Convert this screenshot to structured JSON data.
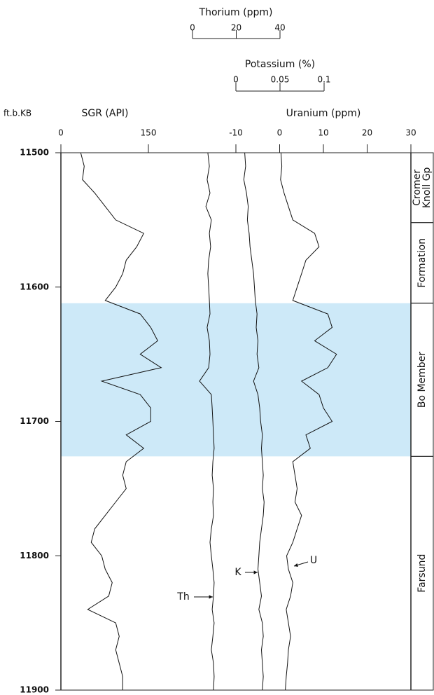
{
  "chart_data": {
    "type": "well-log",
    "depth_label": "ft.b.KB",
    "depth": [
      11500,
      11510,
      11520,
      11530,
      11540,
      11550,
      11560,
      11570,
      11580,
      11590,
      11600,
      11610,
      11620,
      11630,
      11640,
      11650,
      11660,
      11670,
      11680,
      11690,
      11700,
      11710,
      11720,
      11730,
      11740,
      11750,
      11760,
      11770,
      11780,
      11790,
      11800,
      11810,
      11820,
      11830,
      11840,
      11850,
      11860,
      11870,
      11880,
      11890,
      11900
    ],
    "ylim": [
      11500,
      11900
    ],
    "yticks": [
      11500,
      11600,
      11700,
      11800,
      11900
    ],
    "axes": {
      "th": {
        "label": "Thorium (ppm)",
        "lim": [
          0,
          40
        ],
        "ticks": [
          0,
          20,
          40
        ]
      },
      "k": {
        "label": "Potassium (%)",
        "lim": [
          0,
          0.1
        ],
        "ticks": [
          0,
          0.05,
          0.1
        ]
      },
      "u": {
        "label": "Uranium (ppm)",
        "lim": [
          -10,
          30
        ],
        "ticks": [
          -10,
          0,
          10,
          20,
          30
        ]
      },
      "sgr": {
        "label": "SGR (API)",
        "lim": [
          0,
          150
        ],
        "ticks": [
          0,
          150
        ]
      }
    },
    "series": [
      {
        "axis": "sgr",
        "color": "#111111",
        "values": [
          34,
          40,
          37,
          58,
          76,
          94,
          142,
          130,
          112,
          106,
          94,
          76,
          136,
          154,
          166,
          136,
          172,
          70,
          136,
          154,
          154,
          112,
          142,
          112,
          106,
          112,
          94,
          76,
          58,
          52,
          70,
          76,
          88,
          82,
          46,
          94,
          100,
          94,
          100,
          106,
          106
        ]
      },
      {
        "axis": "th",
        "color": "#111111",
        "values": [
          7,
          7.7,
          6.7,
          8,
          6.1,
          8.6,
          7.7,
          8.3,
          7.4,
          7,
          7.4,
          7.7,
          8,
          6.7,
          7.7,
          8,
          7.4,
          3.2,
          8.6,
          9,
          9.3,
          9.6,
          9.9,
          9.3,
          9,
          9.6,
          9.3,
          9.6,
          8.6,
          8,
          8.6,
          9.3,
          9.9,
          9.6,
          9,
          9.9,
          9.3,
          8.6,
          9.6,
          9.9,
          9.6
        ]
      },
      {
        "axis": "k",
        "color": "#111111",
        "values": [
          0.01,
          0.011,
          0.009,
          0.012,
          0.014,
          0.013,
          0.015,
          0.016,
          0.018,
          0.02,
          0.021,
          0.022,
          0.024,
          0.023,
          0.025,
          0.024,
          0.026,
          0.02,
          0.025,
          0.027,
          0.028,
          0.03,
          0.029,
          0.03,
          0.031,
          0.03,
          0.032,
          0.031,
          0.029,
          0.027,
          0.026,
          0.025,
          0.027,
          0.029,
          0.026,
          0.03,
          0.031,
          0.029,
          0.03,
          0.031,
          0.03
        ]
      },
      {
        "axis": "u",
        "color": "#111111",
        "values": [
          0.3,
          0.5,
          0.2,
          1,
          2,
          3,
          8,
          9,
          6,
          5,
          4,
          3,
          11,
          12,
          8,
          13,
          11,
          5,
          9,
          10,
          12,
          6,
          7,
          3,
          3.5,
          4,
          3.5,
          5,
          4,
          3,
          1.6,
          2,
          3,
          2.5,
          1.5,
          2,
          2.5,
          2,
          1.8,
          1.5,
          1.3
        ]
      }
    ],
    "highlight": {
      "top": 11612,
      "base": 11726,
      "color": "#cde9f8"
    },
    "zones": [
      {
        "label": [
          "Cromer",
          "Knoll Gp"
        ],
        "top": 11500,
        "base": 11552
      },
      {
        "label": [
          "Formation"
        ],
        "top": 11552,
        "base": 11612
      },
      {
        "label": [
          "Bo Member"
        ],
        "top": 11612,
        "base": 11726
      },
      {
        "label": [
          "Farsund"
        ],
        "top": 11726,
        "base": 11900
      }
    ],
    "annotations": [
      "Th",
      "K",
      "U"
    ]
  }
}
